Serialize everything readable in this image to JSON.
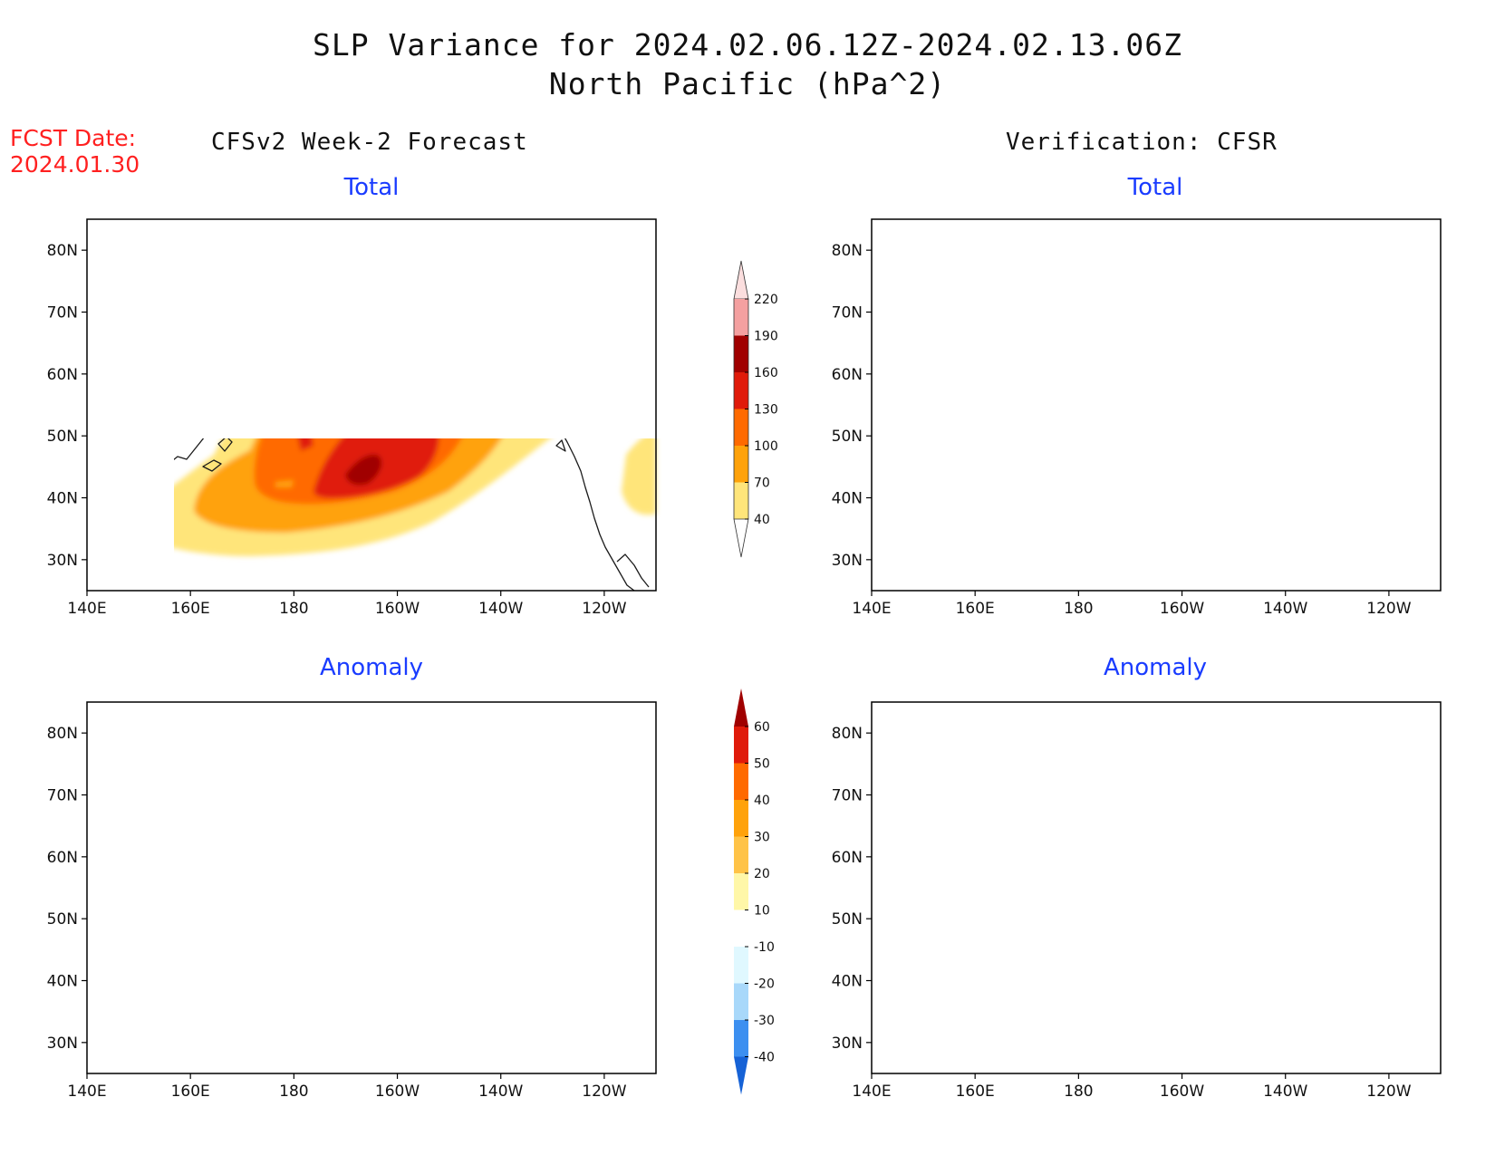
{
  "title": {
    "line1": "SLP Variance for 2024.02.06.12Z-2024.02.13.06Z",
    "line2": "North Pacific (hPa^2)"
  },
  "fcst": {
    "label": "FCST Date:",
    "date": "2024.01.30"
  },
  "columns": {
    "left": "CFSv2 Week-2 Forecast",
    "right": "Verification: CFSR"
  },
  "subtitles": {
    "total": "Total",
    "anomaly": "Anomaly"
  },
  "axes": {
    "lat_labels": [
      "80N",
      "70N",
      "60N",
      "50N",
      "40N",
      "30N"
    ],
    "lat_values": [
      80,
      70,
      60,
      50,
      40,
      30
    ],
    "lon_labels": [
      "140E",
      "160E",
      "180",
      "160W",
      "140W",
      "120W"
    ],
    "lon_values": [
      140,
      160,
      180,
      200,
      220,
      240
    ],
    "lon_range": [
      140,
      250
    ],
    "lat_range": [
      25,
      85
    ]
  },
  "legends": {
    "total": {
      "levels": [
        "220",
        "190",
        "160",
        "130",
        "100",
        "70",
        "40"
      ],
      "colors": [
        "#fbdede",
        "#f4a0a0",
        "#a00000",
        "#e01a0a",
        "#ff6a00",
        "#ffa20a",
        "#ffe57a"
      ]
    },
    "anomaly": {
      "levels": [
        "60",
        "50",
        "40",
        "30",
        "20",
        "10",
        "-10",
        "-20",
        "-30",
        "-40"
      ],
      "colors": [
        "#a00000",
        "#e01a0a",
        "#ff6a00",
        "#ffa20a",
        "#ffc347",
        "#fff7a8",
        "#ffffff",
        "#e0f8ff",
        "#a8d8fa",
        "#3c8ff0",
        "#1662d6"
      ]
    }
  }
}
